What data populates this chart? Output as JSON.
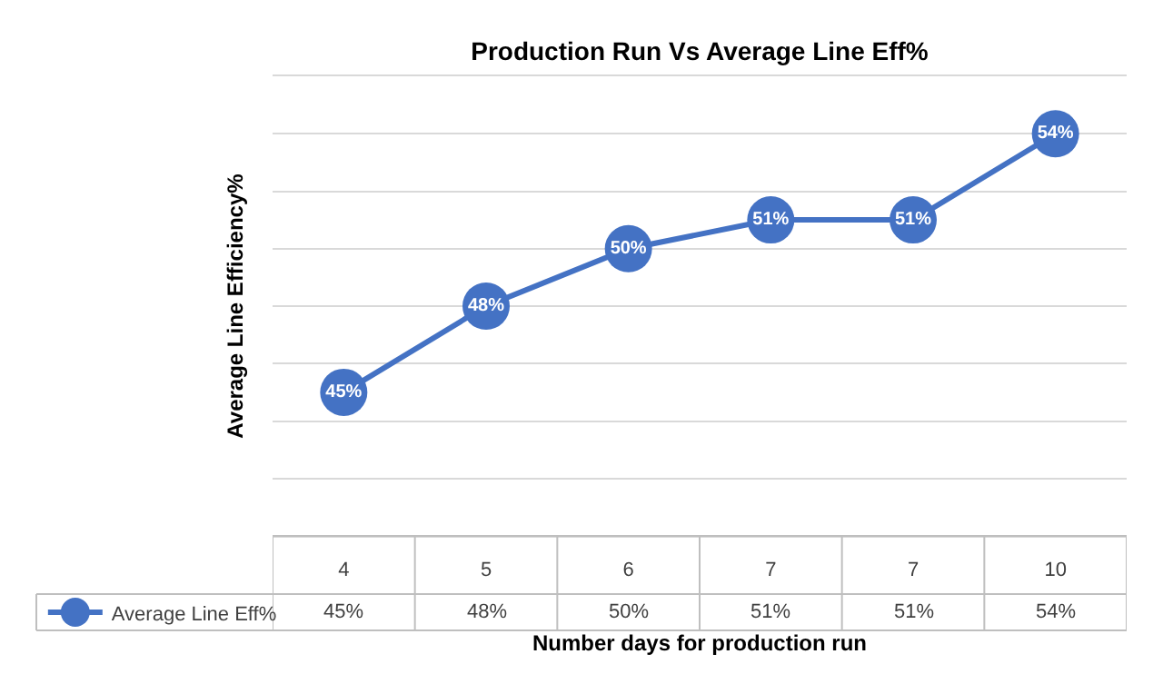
{
  "chart_data": {
    "type": "line",
    "title": "Production Run Vs Average Line Eff%",
    "xlabel": "Number days for production run",
    "ylabel": "Average Line Efficiency%",
    "categories": [
      "4",
      "5",
      "6",
      "7",
      "7",
      "10"
    ],
    "series": [
      {
        "name": "Average Line Eff%",
        "color": "#4472c4",
        "values": [
          45,
          48,
          50,
          51,
          51,
          54
        ],
        "value_labels": [
          "45%",
          "48%",
          "50%",
          "51%",
          "51%",
          "54%"
        ]
      }
    ],
    "ylim": [
      40,
      56
    ],
    "yticks": [
      {
        "value": 40,
        "label": null
      },
      {
        "value": 42,
        "label": null
      },
      {
        "value": 44,
        "label": null
      },
      {
        "value": 46,
        "label": null
      },
      {
        "value": 48,
        "label": null
      },
      {
        "value": 50,
        "label": null
      },
      {
        "value": 52,
        "label": null
      },
      {
        "value": 54,
        "label": null
      },
      {
        "value": 56,
        "label": null
      }
    ],
    "grid": "y",
    "legend": "bottom left",
    "marker": "circle",
    "line_style": "solid",
    "tick_labels": "x"
  }
}
